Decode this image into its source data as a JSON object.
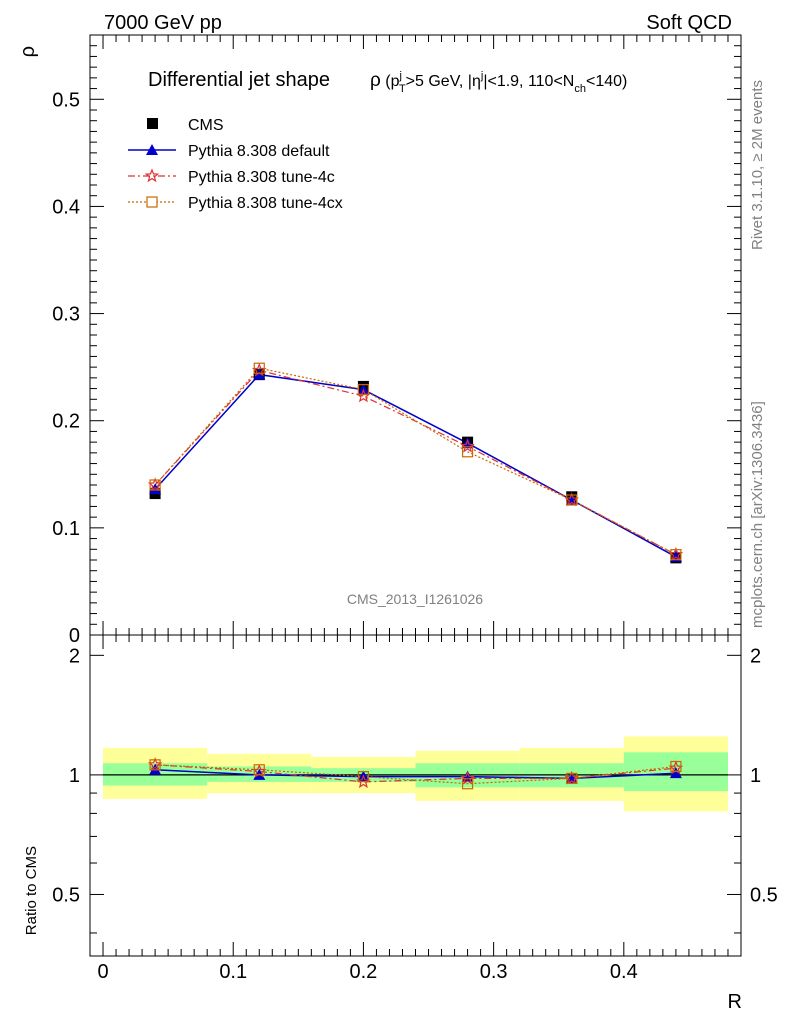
{
  "header": {
    "left": "7000 GeV pp",
    "right": "Soft QCD"
  },
  "side_labels": {
    "rivet": "Rivet 3.1.10, ≥ 2M events",
    "mcplots": "mcplots.cern.ch [arXiv:1306.3436]"
  },
  "chart_data": {
    "type": "line",
    "title_main": "Differential jet shape",
    "title_cuts": "ρ (pᵀʲ >5 GeV, |ηʲ|<1.9, 110<N_ch<140)",
    "analysis_tag": "CMS_2013_I1261026",
    "xlabel": "R",
    "ylabel": "ρ",
    "ratio_ylabel": "Ratio to CMS",
    "xlim": [
      -0.01,
      0.49
    ],
    "ylim": [
      0,
      0.56
    ],
    "ratio_ylim": [
      0.35,
      2.25
    ],
    "x_ticks": [
      "0",
      "0.1",
      "0.2",
      "0.3",
      "0.4"
    ],
    "y_ticks": [
      "0",
      "0.1",
      "0.2",
      "0.3",
      "0.4",
      "0.5"
    ],
    "ratio_ticks": [
      "0.5",
      "1",
      "2"
    ],
    "bin_edges": [
      0.0,
      0.08,
      0.16,
      0.24,
      0.32,
      0.4,
      0.48
    ],
    "x": [
      0.04,
      0.12,
      0.2,
      0.28,
      0.36,
      0.44
    ],
    "data": {
      "name": "CMS",
      "values": [
        0.132,
        0.243,
        0.232,
        0.18,
        0.129,
        0.072
      ]
    },
    "series": [
      {
        "name": "Pythia 8.308 default",
        "color": "#0000cc",
        "marker": "triangle",
        "dash": "solid",
        "values": [
          0.136,
          0.243,
          0.229,
          0.179,
          0.126,
          0.073
        ],
        "ratio": [
          1.03,
          1.0,
          0.99,
          0.99,
          0.98,
          1.01
        ]
      },
      {
        "name": "Pythia 8.308 tune-4c",
        "color": "#dd3333",
        "marker": "star",
        "dash": "dashdot",
        "values": [
          0.14,
          0.247,
          0.223,
          0.176,
          0.126,
          0.075
        ],
        "ratio": [
          1.06,
          1.02,
          0.96,
          0.98,
          0.98,
          1.04
        ]
      },
      {
        "name": "Pythia 8.308 tune-4cx",
        "color": "#cc6600",
        "marker": "square",
        "dash": "dotted",
        "values": [
          0.14,
          0.249,
          0.229,
          0.171,
          0.126,
          0.075
        ],
        "ratio": [
          1.06,
          1.03,
          0.99,
          0.95,
          0.98,
          1.05
        ]
      }
    ],
    "ratio_bands": {
      "inner": [
        [
          0.94,
          1.07
        ],
        [
          0.96,
          1.05
        ],
        [
          0.96,
          1.04
        ],
        [
          0.93,
          1.07
        ],
        [
          0.93,
          1.07
        ],
        [
          0.91,
          1.14
        ]
      ],
      "outer": [
        [
          0.87,
          1.17
        ],
        [
          0.9,
          1.13
        ],
        [
          0.9,
          1.11
        ],
        [
          0.86,
          1.15
        ],
        [
          0.86,
          1.17
        ],
        [
          0.81,
          1.25
        ]
      ],
      "inner_color": "#99ff99",
      "outer_color": "#ffff99"
    }
  }
}
